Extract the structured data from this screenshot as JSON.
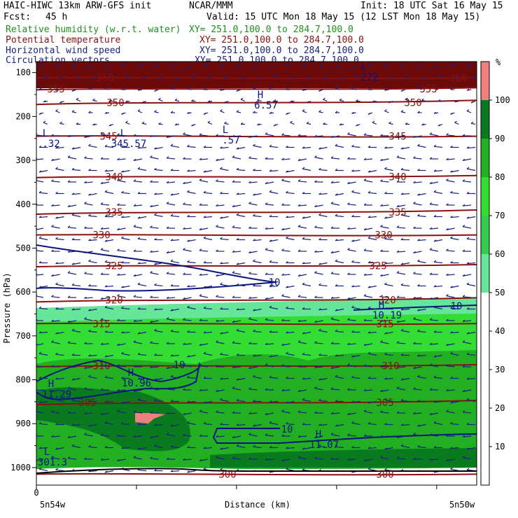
{
  "header": {
    "model": "HAIC-HIWC 13km ARW-GFS init",
    "org": "NCAR/MMM",
    "init": "Init: 18 UTC Sat 16 May 15",
    "fcst_label": "Fcst:",
    "fcst_value": "45 h",
    "valid": "Valid: 15 UTC Mon 18 May 15 (12 LST Mon 18 May 15)",
    "fields": [
      {
        "name": "Relative humidity (w.r.t. water)",
        "xy": "XY= 251.0,100.0 to 284.7,100.0",
        "color": "#1f8f1f"
      },
      {
        "name": "Potential temperature",
        "xy": "XY= 251.0,100.0 to 284.7,100.0",
        "color": "#8b1010"
      },
      {
        "name": "Horizontal wind speed",
        "xy": "XY= 251.0,100.0 to 284.7,100.0",
        "color": "#1a237e"
      },
      {
        "name": "Circulation vectors",
        "xy": "XY= 251.0,100.0 to 284.7,100.0",
        "color": "#1a237e"
      }
    ]
  },
  "chart_data": {
    "type": "heatmap",
    "ylabel": "Pressure (hPa)",
    "xlabel": "Distance (km)",
    "x_origin_label": "0",
    "x_end_labels": [
      "5n54w",
      "5n50w"
    ],
    "y_ticks": [
      100,
      200,
      300,
      400,
      500,
      600,
      700,
      800,
      900,
      1000
    ],
    "ylim": [
      1040,
      75
    ],
    "colorbar": {
      "unit": "%",
      "ticks": [
        10,
        20,
        30,
        40,
        50,
        60,
        70,
        80,
        90,
        100
      ],
      "bands": [
        {
          "from": 50,
          "to": 60,
          "color": "#66e699"
        },
        {
          "from": 60,
          "to": 70,
          "color": "#33cc4d"
        },
        {
          "from": 70,
          "to": 80,
          "color": "#33dd33"
        },
        {
          "from": 80,
          "to": 90,
          "color": "#22b022"
        },
        {
          "from": 90,
          "to": 100,
          "color": "#0a7a1e"
        },
        {
          "from": 100,
          "to": 110,
          "color": "#f08080"
        }
      ]
    },
    "theta_contours": [
      {
        "p": 112,
        "labels": [
          "360",
          "360"
        ]
      },
      {
        "p": 137,
        "labels": [
          "355",
          "355"
        ]
      },
      {
        "p": 168,
        "labels": [
          "350",
          "350"
        ]
      },
      {
        "p": 245,
        "labels": [
          "345",
          "345"
        ]
      },
      {
        "p": 337,
        "labels": [
          "340",
          "340"
        ]
      },
      {
        "p": 418,
        "labels": [
          "335",
          "335"
        ]
      },
      {
        "p": 470,
        "labels": [
          "330",
          "330"
        ]
      },
      {
        "p": 540,
        "labels": [
          "325",
          "325"
        ]
      },
      {
        "p": 618,
        "labels": [
          "320",
          "320"
        ]
      },
      {
        "p": 672,
        "labels": [
          "315",
          "315"
        ]
      },
      {
        "p": 768,
        "labels": [
          "310",
          "310"
        ]
      },
      {
        "p": 852,
        "labels": [
          "305",
          "305"
        ]
      },
      {
        "p": 1015,
        "labels": [
          "300",
          "300"
        ]
      }
    ],
    "wind_contour_label": "10",
    "extrema": [
      {
        "type": "H",
        "value": "6.57"
      },
      {
        "type": "L",
        "value": ".32"
      },
      {
        "type": "L",
        "value": "345.57"
      },
      {
        "type": "L",
        "value": ".57"
      },
      {
        "type": "H",
        "value": "10.19"
      },
      {
        "type": "H",
        "value": "10.96"
      },
      {
        "type": "H",
        "value": "11.29"
      },
      {
        "type": "H",
        "value": "11.07"
      },
      {
        "type": "L",
        "value": "301.3"
      },
      {
        "type": "L",
        "value": "272"
      }
    ]
  }
}
